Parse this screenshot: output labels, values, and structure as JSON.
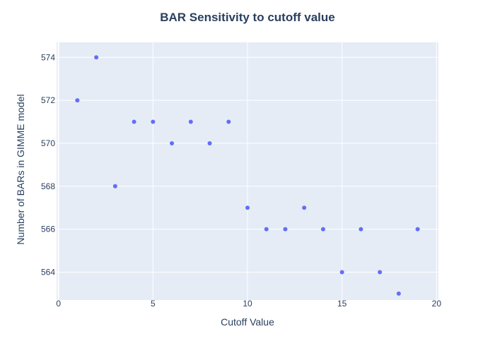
{
  "chart_data": {
    "type": "scatter",
    "title": "BAR Sensitivity to cutoff value",
    "xlabel": "Cutoff Value",
    "ylabel": "Number of BARs in GIMME model",
    "x": [
      1,
      2,
      3,
      4,
      5,
      6,
      7,
      8,
      9,
      10,
      11,
      12,
      13,
      14,
      15,
      16,
      17,
      18,
      19
    ],
    "y": [
      572,
      574,
      568,
      571,
      571,
      570,
      571,
      570,
      571,
      567,
      566,
      566,
      567,
      566,
      564,
      566,
      564,
      563,
      566
    ],
    "xlim": [
      -0.1,
      20.1
    ],
    "ylim": [
      562.7,
      574.7
    ],
    "xticks": [
      0,
      5,
      10,
      15,
      20
    ],
    "yticks": [
      564,
      566,
      568,
      570,
      572,
      574
    ],
    "grid": true,
    "colors": {
      "marker": "#636efa",
      "plot_background": "#e5ecf6",
      "grid": "#ffffff",
      "text": "#2a3f5f"
    }
  }
}
